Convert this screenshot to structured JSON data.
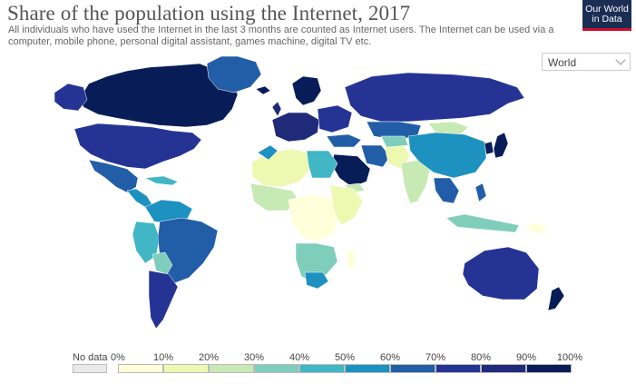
{
  "header": {
    "title": "Share of the population using the Internet, 2017",
    "subtitle": "All individuals who have used the Internet in the last 3 months are counted as Internet users. The Internet can be used via a computer, mobile phone, personal digital assistant, games machine, digital TV etc."
  },
  "logo": {
    "line1": "Our World",
    "line2": "in Data"
  },
  "region_select": {
    "selected": "World",
    "icon": "chevron-down-icon"
  },
  "legend": {
    "no_data_label": "No data",
    "no_data_color": "#e9e9e9",
    "ticks": [
      "0%",
      "10%",
      "20%",
      "30%",
      "40%",
      "50%",
      "60%",
      "70%",
      "80%",
      "90%",
      "100%"
    ],
    "colors": [
      "#ffffd9",
      "#edf8b1",
      "#c7e9b4",
      "#7fcdbb",
      "#41b6c4",
      "#1d91c0",
      "#225ea8",
      "#253494",
      "#1f2a7a",
      "#081d58"
    ]
  }
}
